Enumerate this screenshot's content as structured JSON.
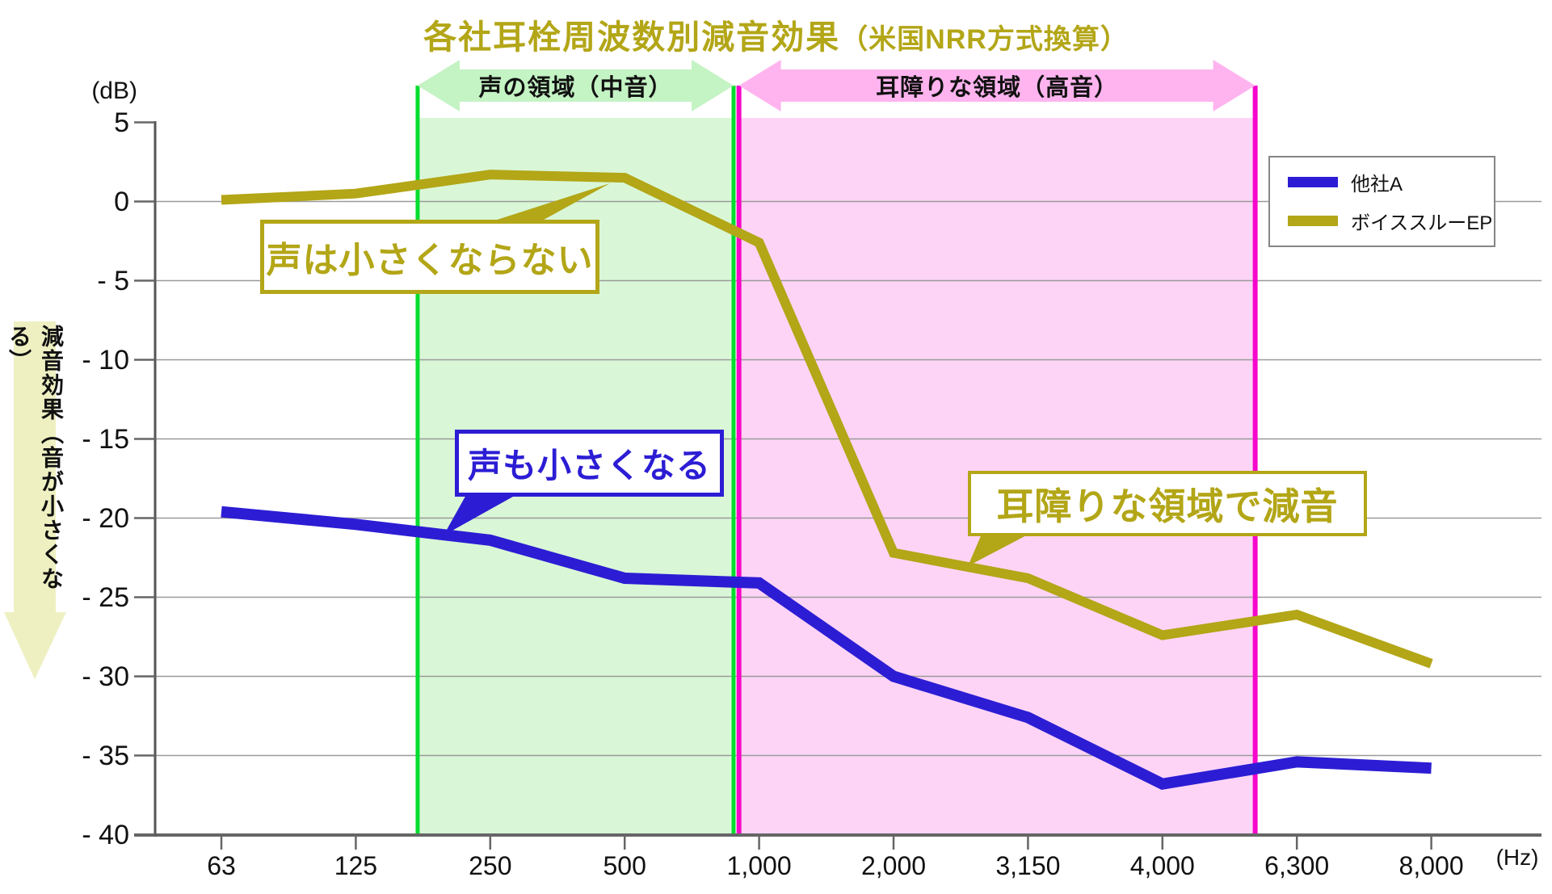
{
  "title": {
    "main": "各社耳栓周波数別減音効果",
    "suffix": "（米国NRR方式換算）",
    "color": "#b3a617"
  },
  "y_axis": {
    "unit": "(dB)",
    "tick_values": [
      5,
      0,
      -5,
      -10,
      -15,
      -20,
      -25,
      -30,
      -35,
      -40
    ],
    "tick_labels": [
      "5",
      "0",
      "- 5",
      "- 10",
      "- 15",
      "- 20",
      "- 25",
      "- 30",
      "- 35",
      "- 40"
    ],
    "arrow_label": "減音効果（音が小さくなる）",
    "arrow_fill": "#eef0c2"
  },
  "x_axis": {
    "unit": "(Hz)"
  },
  "legend": {
    "items": [
      {
        "label": "他社A",
        "color": "#2c1dd4"
      },
      {
        "label": "ボイススルーEP",
        "color": "#b3a617"
      }
    ]
  },
  "chart_data": {
    "type": "line",
    "title": "各社耳栓周波数別減音効果（米国NRR方式換算）",
    "xlabel": "(Hz)",
    "ylabel": "(dB) 減音効果（音が小さくなる）",
    "categories": [
      "63",
      "125",
      "250",
      "500",
      "1,000",
      "2,000",
      "3,150",
      "4,000",
      "6,300",
      "8,000"
    ],
    "ylim": [
      -40,
      5
    ],
    "ytick_step": 5,
    "grid": true,
    "legend_position": "top-right",
    "series": [
      {
        "name": "他社A",
        "color": "#2c1dd4",
        "values": [
          -19.6,
          -20.4,
          -21.4,
          -23.8,
          -24.1,
          -30.0,
          -32.6,
          -36.8,
          -35.4,
          -35.8
        ]
      },
      {
        "name": "ボイススルーEP",
        "color": "#b3a617",
        "values": [
          0.1,
          0.5,
          1.7,
          1.5,
          -2.6,
          -22.2,
          -23.8,
          -27.4,
          -26.1,
          -29.2
        ]
      }
    ],
    "regions": [
      {
        "label": "声の領域（中音）",
        "fill": "#d9f7d7",
        "border_color": "#06dd2e",
        "arrow_fill": "#c4f3c4",
        "from_index": 1.46,
        "to_index": 3.81,
        "approx_hz_range": "180–900 Hz"
      },
      {
        "label": "耳障りな領域（高音）",
        "fill": "#fdd4f6",
        "border_color": "#f607cb",
        "arrow_fill": "#ffb4ef",
        "from_index": 3.85,
        "to_index": 7.69,
        "approx_hz_range": "950–5500 Hz"
      }
    ],
    "annotations": [
      {
        "text": "声は小さくならない",
        "color": "#b3a617",
        "target_series": "ボイススルーEP"
      },
      {
        "text": "声も小さくなる",
        "color": "#2c1dd4",
        "target_series": "他社A"
      },
      {
        "text": "耳障りな領域で減音",
        "color": "#b3a617",
        "target_series": "ボイススルーEP"
      }
    ]
  }
}
